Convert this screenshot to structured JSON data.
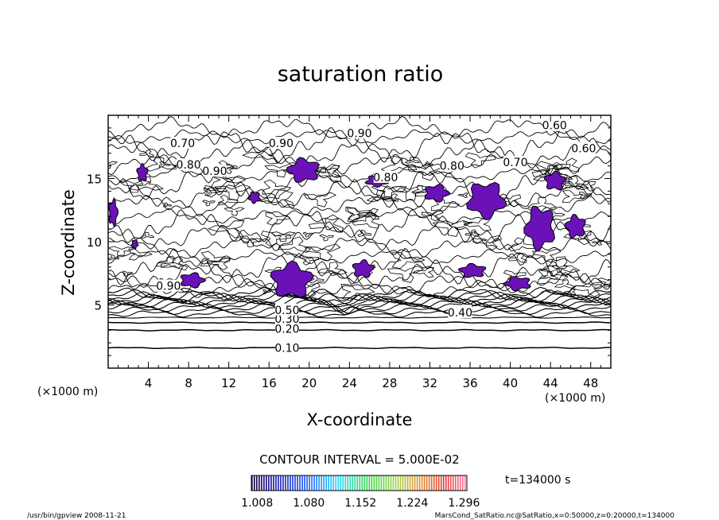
{
  "chart_data": {
    "type": "contour",
    "title": "saturation ratio",
    "xlabel": "X-coordinate",
    "ylabel": "Z-coordinate",
    "x_unit_left": "(×1000 m)",
    "x_unit_right": "(×1000 m)",
    "xlim": [
      0,
      50
    ],
    "ylim": [
      0,
      20
    ],
    "xticks": [
      4,
      8,
      12,
      16,
      20,
      24,
      28,
      32,
      36,
      40,
      44,
      48
    ],
    "yticks": [
      5,
      10,
      15
    ],
    "contour_interval_text": "CONTOUR INTERVAL = 5.000E-02",
    "time_label": "t=134000 s",
    "colorbar_labels": [
      "1.008",
      "1.080",
      "1.152",
      "1.224",
      "1.296"
    ],
    "colorbar_range": [
      1.0,
      1.3
    ],
    "contour_labels": [
      {
        "text": "0.10",
        "x": 17.8,
        "z": 1.6
      },
      {
        "text": "0.20",
        "x": 17.8,
        "z": 3.1
      },
      {
        "text": "0.30",
        "x": 17.8,
        "z": 3.9
      },
      {
        "text": "0.40",
        "x": 35.0,
        "z": 4.4
      },
      {
        "text": "0.50",
        "x": 17.8,
        "z": 4.6
      },
      {
        "text": "0.60",
        "x": 44.4,
        "z": 19.2
      },
      {
        "text": "0.60",
        "x": 47.3,
        "z": 17.4
      },
      {
        "text": "0.70",
        "x": 7.4,
        "z": 17.8
      },
      {
        "text": "0.70",
        "x": 40.5,
        "z": 16.3
      },
      {
        "text": "0.80",
        "x": 8.0,
        "z": 16.1
      },
      {
        "text": "0.80",
        "x": 34.2,
        "z": 16.0
      },
      {
        "text": "0.80",
        "x": 27.6,
        "z": 15.1
      },
      {
        "text": "0.90",
        "x": 17.2,
        "z": 17.8
      },
      {
        "text": "0.90",
        "x": 25.0,
        "z": 18.6
      },
      {
        "text": "0.90",
        "x": 10.6,
        "z": 15.6
      },
      {
        "text": "0.90",
        "x": 6.0,
        "z": 6.5
      }
    ],
    "supersaturated_regions": [
      {
        "x": [
          2.8,
          4.0
        ],
        "z": [
          14.7,
          16.2
        ]
      },
      {
        "x": [
          0.0,
          1.0
        ],
        "z": [
          11.1,
          13.5
        ]
      },
      {
        "x": [
          2.3,
          3.0
        ],
        "z": [
          9.4,
          10.2
        ]
      },
      {
        "x": [
          13.9,
          15.2
        ],
        "z": [
          13.0,
          14.0
        ]
      },
      {
        "x": [
          17.7,
          21.2
        ],
        "z": [
          14.6,
          16.7
        ]
      },
      {
        "x": [
          16.0,
          20.5
        ],
        "z": [
          5.4,
          8.5
        ]
      },
      {
        "x": [
          7.0,
          9.7
        ],
        "z": [
          6.3,
          7.6
        ]
      },
      {
        "x": [
          35.5,
          39.7
        ],
        "z": [
          11.7,
          14.9
        ]
      },
      {
        "x": [
          41.3,
          44.6
        ],
        "z": [
          9.2,
          13.0
        ]
      },
      {
        "x": [
          45.4,
          47.6
        ],
        "z": [
          10.2,
          12.2
        ]
      },
      {
        "x": [
          43.3,
          45.6
        ],
        "z": [
          14.0,
          15.6
        ]
      },
      {
        "x": [
          31.3,
          34.0
        ],
        "z": [
          13.1,
          14.6
        ]
      },
      {
        "x": [
          25.5,
          28.0
        ],
        "z": [
          14.3,
          15.3
        ]
      },
      {
        "x": [
          39.3,
          42.2
        ],
        "z": [
          6.1,
          7.3
        ]
      },
      {
        "x": [
          34.8,
          37.7
        ],
        "z": [
          7.1,
          8.3
        ]
      },
      {
        "x": [
          24.2,
          26.5
        ],
        "z": [
          7.1,
          8.6
        ]
      }
    ]
  },
  "footer": {
    "left": "/usr/bin/gpview   2008-11-21",
    "right": "MarsCond_SatRatio.nc@SatRatio,x=0:50000,z=0:20000,t=134000"
  }
}
